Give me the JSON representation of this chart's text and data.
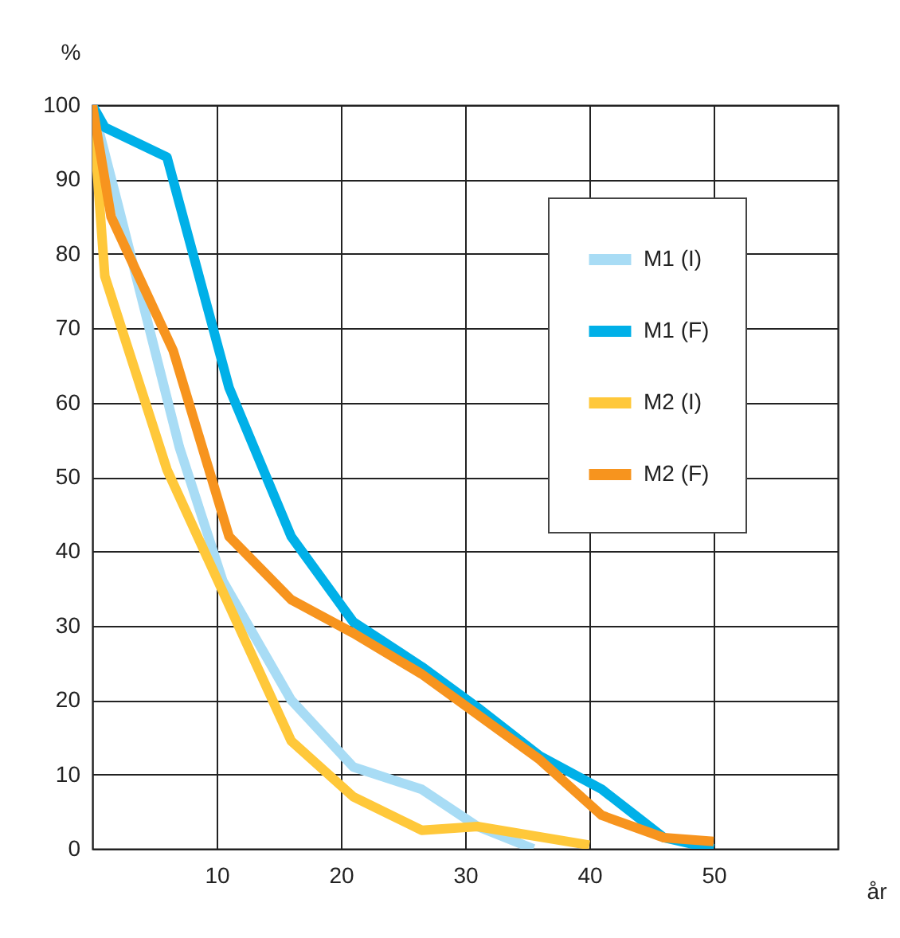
{
  "chart_data": {
    "type": "line",
    "xlabel": "år",
    "ylabel": "%",
    "xlim": [
      0,
      60
    ],
    "xticks": [
      10,
      20,
      30,
      40,
      50
    ],
    "ylim": [
      0,
      100
    ],
    "yticks": [
      0,
      10,
      20,
      30,
      40,
      50,
      60,
      70,
      80,
      90,
      100
    ],
    "grid": true,
    "legend": "top right",
    "series": [
      {
        "name": "M1 (I)",
        "color": "#a8dcf5",
        "x": [
          0,
          2,
          7,
          10.5,
          16,
          21,
          26.5,
          31,
          35.5
        ],
        "values": [
          100,
          87,
          54,
          36,
          20,
          11,
          8,
          3,
          0
        ]
      },
      {
        "name": "M1 (F)",
        "color": "#00b0e8",
        "x": [
          0,
          1,
          6,
          11,
          16,
          21,
          26.5,
          31,
          36,
          41,
          46,
          50
        ],
        "values": [
          100,
          97,
          93,
          62,
          42,
          30.5,
          24.5,
          19,
          12.5,
          8,
          1.5,
          0
        ]
      },
      {
        "name": "M2 (I)",
        "color": "#ffc83a",
        "x": [
          0,
          1,
          6,
          16,
          21,
          26.5,
          31,
          40
        ],
        "values": [
          100,
          77,
          51,
          14.5,
          7,
          2.5,
          3,
          0.5
        ]
      },
      {
        "name": "M2 (F)",
        "color": "#f7941e",
        "x": [
          0,
          1.5,
          6.5,
          11,
          16,
          21,
          26.5,
          36,
          41,
          46,
          50
        ],
        "values": [
          100,
          85,
          67,
          42,
          33.5,
          29,
          23.5,
          12,
          4.5,
          1.5,
          1
        ]
      }
    ]
  }
}
